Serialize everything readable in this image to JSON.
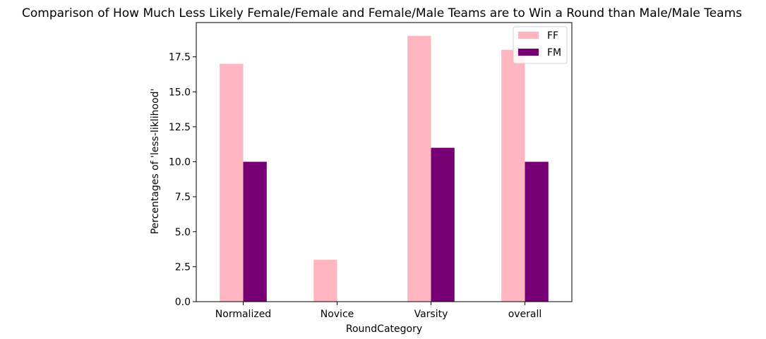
{
  "chart_data": {
    "type": "bar",
    "title": "Comparison of How Much Less Likely Female/Female and Female/Male Teams are to Win a Round than Male/Male Teams",
    "xlabel": "RoundCategory",
    "ylabel": "Percentages of 'less-liklihood'",
    "categories": [
      "Normalized",
      "Novice",
      "Varsity",
      "overall"
    ],
    "series": [
      {
        "name": "FF",
        "color": "#ffb6c1",
        "values": [
          17,
          3,
          19,
          18
        ]
      },
      {
        "name": "FM",
        "color": "#760073",
        "values": [
          10,
          0,
          11,
          10
        ]
      }
    ],
    "ylim": [
      0,
      19.95
    ],
    "yticks": [
      "0.0",
      "2.5",
      "5.0",
      "7.5",
      "10.0",
      "12.5",
      "15.0",
      "17.5"
    ],
    "grid": false,
    "legend_position": "top-right"
  }
}
